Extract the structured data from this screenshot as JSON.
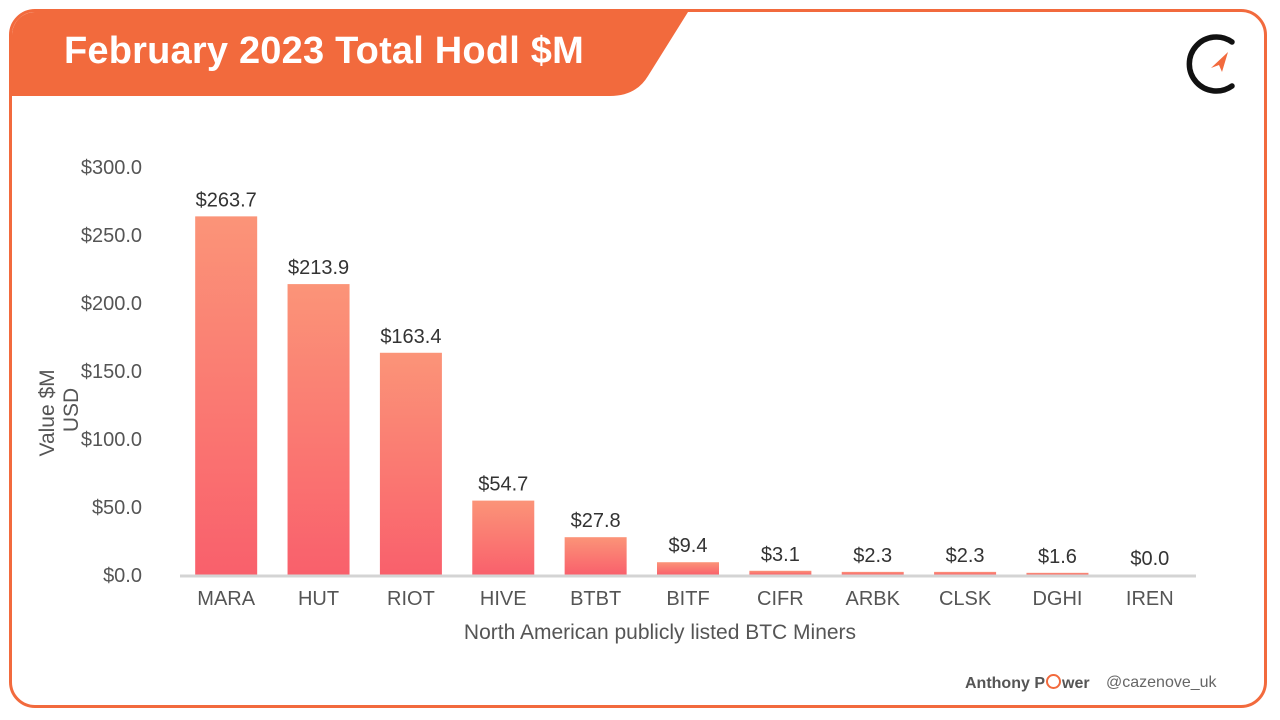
{
  "header": {
    "title": "February 2023 Total Hodl $M",
    "banner_color": "#f26a3d"
  },
  "logo": {
    "icon": "cazenove-logo-icon"
  },
  "chart_data": {
    "type": "bar",
    "title": "February 2023 Total Hodl $M",
    "categories": [
      "MARA",
      "HUT",
      "RIOT",
      "HIVE",
      "BTBT",
      "BITF",
      "CIFR",
      "ARBK",
      "CLSK",
      "DGHI",
      "IREN"
    ],
    "values": [
      263.7,
      213.9,
      163.4,
      54.7,
      27.8,
      9.4,
      3.1,
      2.3,
      2.3,
      1.6,
      0.0
    ],
    "data_labels": [
      "$263.7",
      "$213.9",
      "$163.4",
      "$54.7",
      "$27.8",
      "$9.4",
      "$3.1",
      "$2.3",
      "$2.3",
      "$1.6",
      "$0.0"
    ],
    "ylabel_lines": [
      "Value $M",
      "USD"
    ],
    "xlabel": "North American publicly listed BTC Miners",
    "ylim": [
      0,
      300
    ],
    "yticks": [
      0,
      50,
      100,
      150,
      200,
      250,
      300
    ],
    "ytick_labels": [
      "$0.0",
      "$50.0",
      "$100.0",
      "$150.0",
      "$200.0",
      "$250.0",
      "$300.0"
    ],
    "grid": false,
    "legend": "none",
    "bar_color_top": "#fb9478",
    "bar_color_bottom": "#f9606c"
  },
  "footer": {
    "author_part1": "Anthony P",
    "author_part2": "wer",
    "handle": "@cazenove_uk"
  }
}
